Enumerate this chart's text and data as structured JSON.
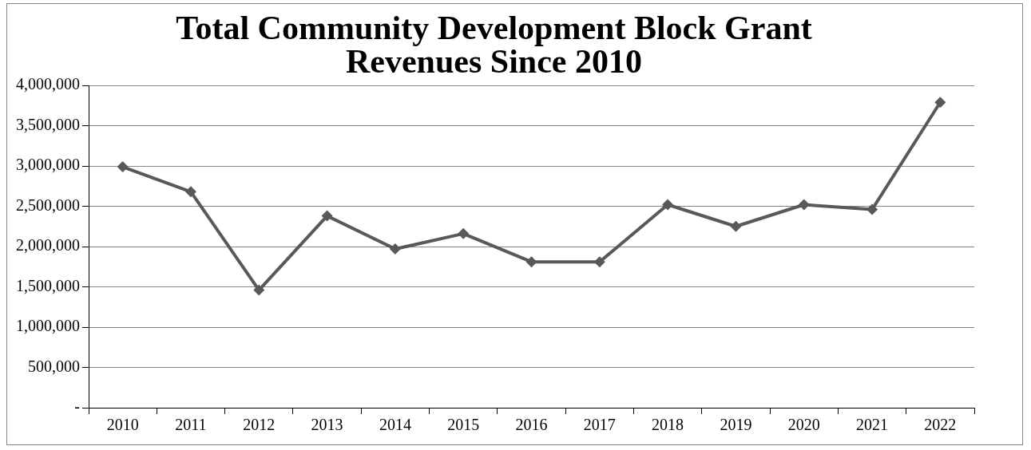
{
  "chart_data": {
    "type": "line",
    "title": [
      "Total Community Development Block Grant",
      "Revenues Since 2010"
    ],
    "categories": [
      "2010",
      "2011",
      "2012",
      "2013",
      "2014",
      "2015",
      "2016",
      "2017",
      "2018",
      "2019",
      "2020",
      "2021",
      "2022"
    ],
    "series": [
      {
        "color": "#595959",
        "values": [
          2990000,
          2680000,
          1460000,
          2380000,
          1970000,
          2160000,
          1810000,
          1810000,
          2520000,
          2250000,
          2520000,
          2460000,
          3790000
        ]
      }
    ],
    "ylim": [
      0,
      4000000
    ],
    "yticks": [
      {
        "value": 0,
        "label": "-"
      },
      {
        "value": 500000,
        "label": "500,000"
      },
      {
        "value": 1000000,
        "label": "1,000,000"
      },
      {
        "value": 1500000,
        "label": "1,500,000"
      },
      {
        "value": 2000000,
        "label": "2,000,000"
      },
      {
        "value": 2500000,
        "label": "2,500,000"
      },
      {
        "value": 3000000,
        "label": "3,000,000"
      },
      {
        "value": 3500000,
        "label": "3,500,000"
      },
      {
        "value": 4000000,
        "label": "4,000,000"
      }
    ],
    "grid": "y",
    "legend": false,
    "marker": "diamond",
    "line_style": "solid"
  }
}
